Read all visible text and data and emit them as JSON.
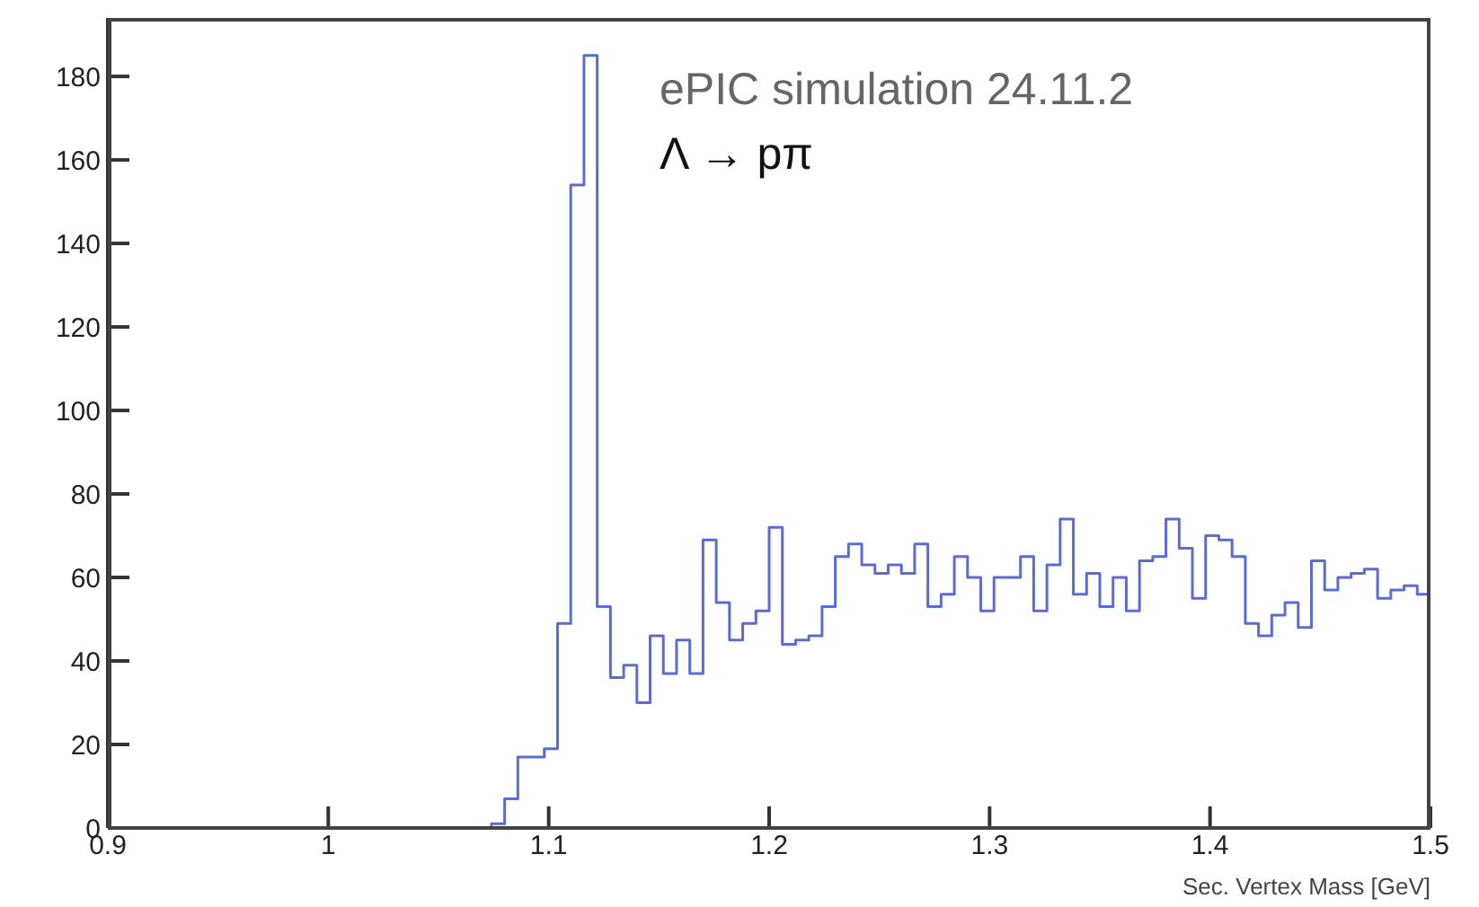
{
  "chart_data": {
    "type": "histogram",
    "annotations": [
      "ePIC simulation 24.11.2",
      "Λ → pπ"
    ],
    "xlabel": "Sec. Vertex Mass [GeV]",
    "color": "#5b6cd2",
    "bins": [
      0.9,
      0.906,
      0.912,
      0.918,
      0.924,
      0.93,
      0.936,
      0.942,
      0.948,
      0.954,
      0.96,
      0.966,
      0.972,
      0.978,
      0.984,
      0.99,
      0.996,
      1.002,
      1.008,
      1.014,
      1.02,
      1.026,
      1.032,
      1.038,
      1.044,
      1.05,
      1.056,
      1.062,
      1.068,
      1.074,
      1.08,
      1.086,
      1.092,
      1.098,
      1.104,
      1.11,
      1.116,
      1.122,
      1.128,
      1.134,
      1.14,
      1.146,
      1.152,
      1.158,
      1.164,
      1.17,
      1.176,
      1.182,
      1.188,
      1.194,
      1.2,
      1.206,
      1.212,
      1.218,
      1.224,
      1.23,
      1.236,
      1.242,
      1.248,
      1.254,
      1.26,
      1.266,
      1.272,
      1.278,
      1.284,
      1.29,
      1.296,
      1.302,
      1.308,
      1.314,
      1.32,
      1.326,
      1.332,
      1.338,
      1.344,
      1.35,
      1.356,
      1.362,
      1.368,
      1.374,
      1.38,
      1.386,
      1.392,
      1.398,
      1.404,
      1.41,
      1.416,
      1.422,
      1.428,
      1.434,
      1.44,
      1.446,
      1.452,
      1.458,
      1.464,
      1.47,
      1.476,
      1.482,
      1.488,
      1.494,
      1.5
    ],
    "values": [
      0,
      0,
      0,
      0,
      0,
      0,
      0,
      0,
      0,
      0,
      0,
      0,
      0,
      0,
      0,
      0,
      0,
      0,
      0,
      0,
      0,
      0,
      0,
      0,
      0,
      0,
      0,
      0,
      0,
      1,
      7,
      17,
      17,
      19,
      49,
      154,
      185,
      53,
      36,
      39,
      30,
      46,
      37,
      45,
      37,
      69,
      54,
      45,
      49,
      52,
      72,
      44,
      45,
      46,
      53,
      65,
      68,
      63,
      61,
      63,
      61,
      68,
      53,
      56,
      65,
      60,
      52,
      60,
      60,
      65,
      52,
      63,
      74,
      56,
      61,
      53,
      60,
      52,
      64,
      65,
      74,
      67,
      55,
      70,
      69,
      65,
      49,
      46,
      51,
      54,
      48,
      64,
      57,
      60,
      61,
      62,
      55,
      57,
      58,
      56
    ],
    "xlim": [
      0.9,
      1.5
    ],
    "xticks": [
      0.9,
      1,
      1.1,
      1.2,
      1.3,
      1.4,
      1.5
    ],
    "ylim": [
      0,
      194
    ],
    "yticks": [
      0,
      20,
      40,
      60,
      80,
      100,
      120,
      140,
      160,
      180
    ],
    "grid": false
  }
}
